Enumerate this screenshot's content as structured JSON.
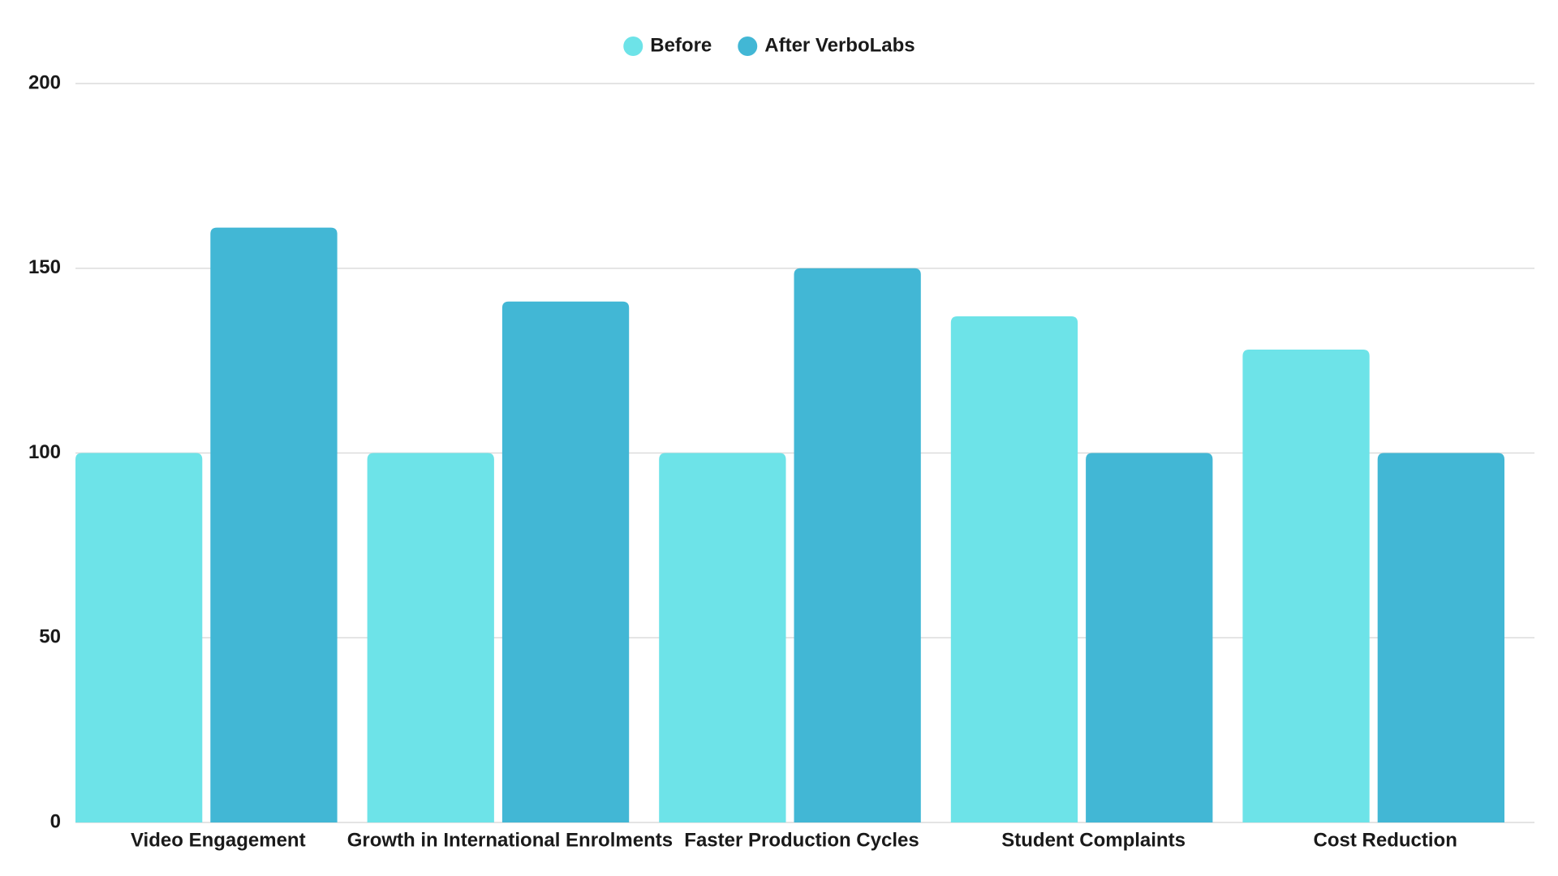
{
  "chart_data": {
    "type": "bar",
    "categories": [
      "Video Engagement",
      "Growth in International Enrolments",
      "Faster Production Cycles",
      "Student Complaints",
      "Cost Reduction"
    ],
    "series": [
      {
        "name": "Before",
        "color": "#6de3e8",
        "values": [
          100,
          100,
          100,
          137,
          128
        ]
      },
      {
        "name": "After VerboLabs",
        "color": "#42b7d5",
        "values": [
          161,
          141,
          150,
          100,
          100
        ]
      }
    ],
    "ylim": [
      0,
      200
    ],
    "yticks": [
      0,
      50,
      100,
      150,
      200
    ],
    "grid": true,
    "legend": "top"
  }
}
